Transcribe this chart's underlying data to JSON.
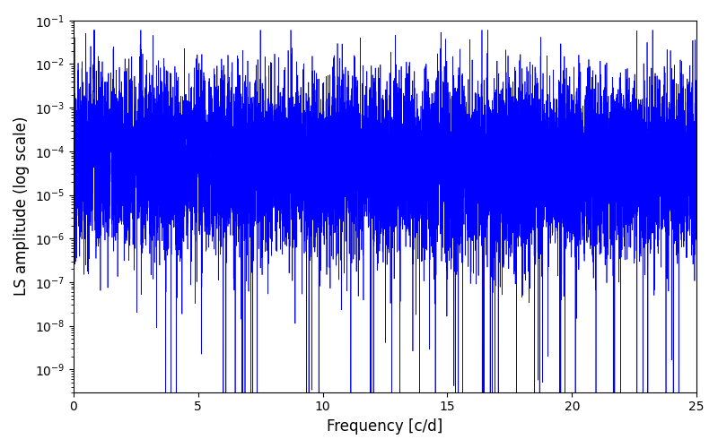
{
  "xlabel": "Frequency [c/d]",
  "ylabel": "LS amplitude (log scale)",
  "xlim": [
    0,
    25
  ],
  "ylim_log": [
    3e-10,
    0.1
  ],
  "line_color": "#0000ff",
  "line_width": 0.5,
  "yscale": "log",
  "freq_max": 25.0,
  "n_points": 12000,
  "background_color": "#ffffff",
  "seed": 12345,
  "figsize": [
    8.0,
    5.0
  ],
  "dpi": 100
}
